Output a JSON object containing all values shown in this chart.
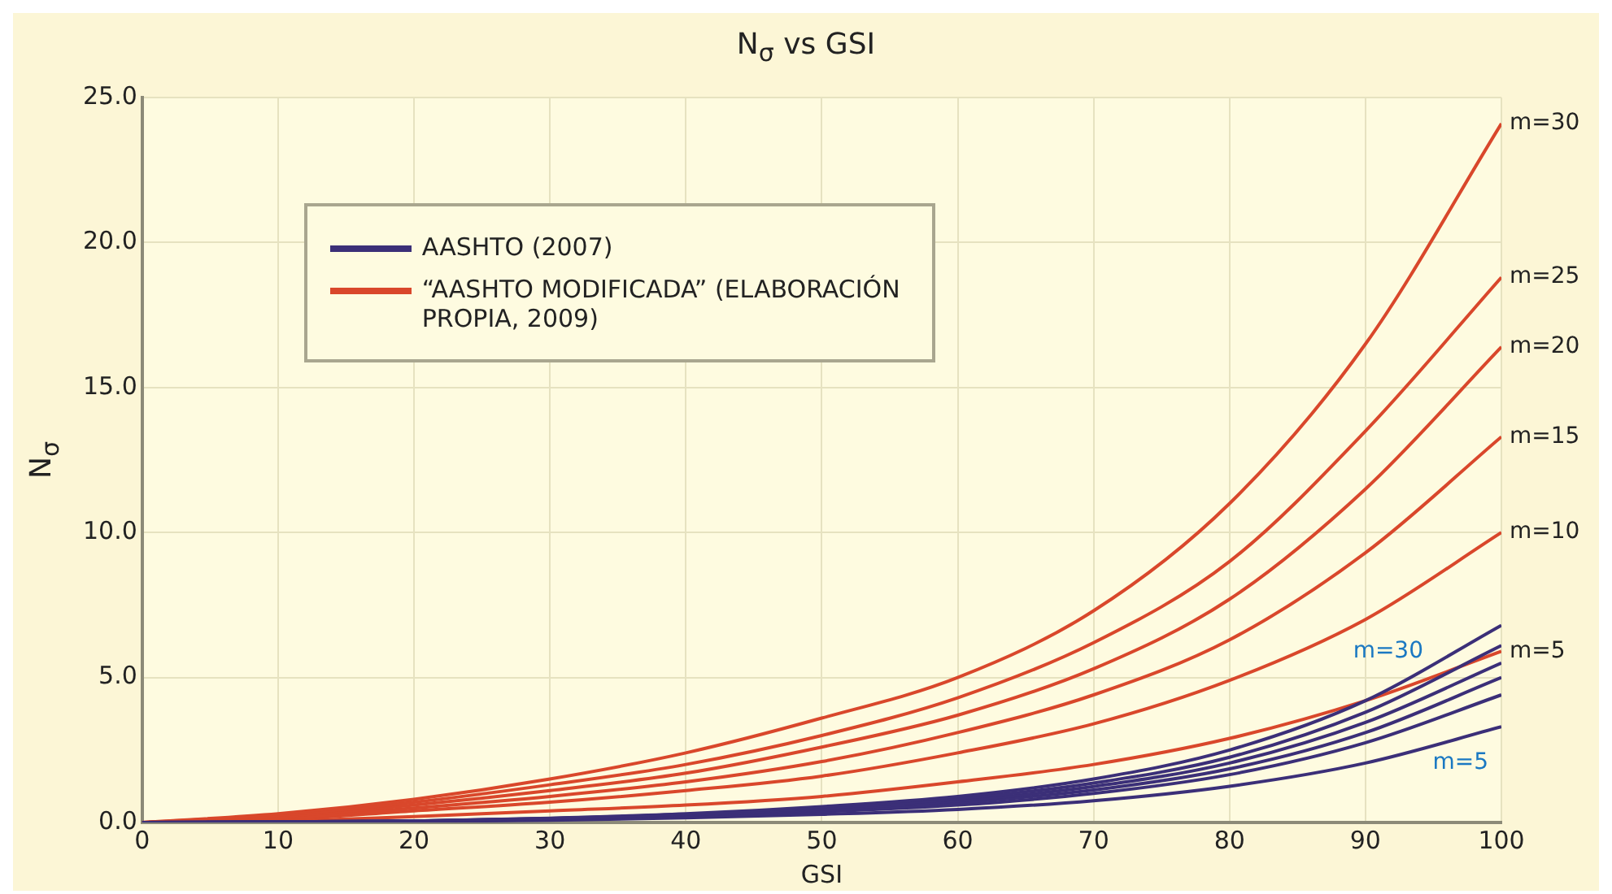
{
  "chart_data": {
    "type": "line",
    "title": "N$_{σ}$ vs GSI",
    "xlabel": "GSI",
    "ylabel": "N$_{σ}$",
    "x": [
      0,
      10,
      20,
      30,
      40,
      50,
      60,
      70,
      80,
      90,
      100
    ],
    "series": [
      {
        "name": "AASHTO (2007)",
        "color": "#3b2f78",
        "values": [
          0,
          0.02,
          0.05,
          0.15,
          0.3,
          0.55,
          0.9,
          1.5,
          2.5,
          4.2,
          6.8
        ]
      },
      {
        "color": "#3b2f78",
        "values": [
          0,
          0.02,
          0.05,
          0.14,
          0.28,
          0.5,
          0.82,
          1.36,
          2.25,
          3.8,
          6.1
        ]
      },
      {
        "color": "#3b2f78",
        "values": [
          0,
          0.02,
          0.05,
          0.13,
          0.26,
          0.46,
          0.75,
          1.24,
          2.05,
          3.45,
          5.5
        ]
      },
      {
        "color": "#3b2f78",
        "values": [
          0,
          0.02,
          0.04,
          0.12,
          0.24,
          0.42,
          0.68,
          1.12,
          1.85,
          3.1,
          5.0
        ]
      },
      {
        "color": "#3b2f78",
        "values": [
          0,
          0.01,
          0.04,
          0.1,
          0.21,
          0.37,
          0.6,
          1.0,
          1.65,
          2.75,
          4.4
        ]
      },
      {
        "color": "#3b2f78",
        "values": [
          0,
          0.01,
          0.03,
          0.08,
          0.16,
          0.28,
          0.45,
          0.75,
          1.25,
          2.05,
          3.3
        ]
      },
      {
        "name": "“AASHTO MODIFICADA” (ELABORACIÓN PROPIA, 2009)",
        "color": "#d9472b",
        "values": [
          0,
          0.3,
          0.8,
          1.5,
          2.4,
          3.6,
          5.0,
          7.3,
          11.0,
          16.5,
          24.1
        ]
      },
      {
        "color": "#d9472b",
        "values": [
          0,
          0.25,
          0.7,
          1.3,
          2.0,
          3.0,
          4.3,
          6.2,
          9.0,
          13.5,
          18.8
        ]
      },
      {
        "color": "#d9472b",
        "values": [
          0,
          0.2,
          0.6,
          1.1,
          1.7,
          2.6,
          3.7,
          5.3,
          7.7,
          11.5,
          16.4
        ]
      },
      {
        "color": "#d9472b",
        "values": [
          0,
          0.15,
          0.5,
          0.9,
          1.4,
          2.1,
          3.1,
          4.4,
          6.3,
          9.3,
          13.3
        ]
      },
      {
        "color": "#d9472b",
        "values": [
          0,
          0.1,
          0.4,
          0.7,
          1.1,
          1.6,
          2.4,
          3.4,
          4.9,
          7.0,
          10.0
        ]
      },
      {
        "color": "#d9472b",
        "values": [
          0,
          0.05,
          0.2,
          0.4,
          0.6,
          0.9,
          1.4,
          2.0,
          2.9,
          4.2,
          5.9
        ]
      }
    ],
    "annotations": [
      "m=30",
      "m=25",
      "m=20",
      "m=15",
      "m=10",
      "m=5",
      "m=30",
      "m=5"
    ],
    "xlim": [
      0,
      100
    ],
    "xticks": [
      0,
      10,
      20,
      30,
      40,
      50,
      60,
      70,
      80,
      90,
      100
    ],
    "ylim": [
      0,
      25
    ],
    "yticks": [
      {
        "value": 0,
        "label": "0.0"
      },
      {
        "value": 5,
        "label": "5.0"
      },
      {
        "value": 10,
        "label": "10.0"
      },
      {
        "value": 15,
        "label": "15.0"
      },
      {
        "value": 20,
        "label": "20.0"
      },
      {
        "value": 25,
        "label": "25.0"
      }
    ],
    "grid": true,
    "legend": "top left",
    "marker": "none",
    "line_style": "solid"
  }
}
